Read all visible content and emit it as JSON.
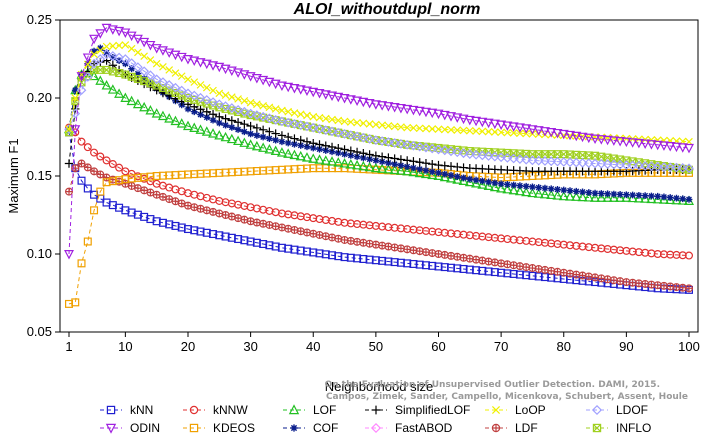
{
  "chart_data": {
    "type": "line",
    "title": "ALOI_withoutdupl_norm",
    "xlabel": "Neighborhood size",
    "ylabel": "Maximum F1",
    "xlim": [
      1,
      100
    ],
    "ylim": [
      0.05,
      0.25
    ],
    "xticks": [
      1,
      10,
      20,
      30,
      40,
      50,
      60,
      70,
      80,
      90,
      100
    ],
    "yticks": [
      0.05,
      0.1,
      0.15,
      0.2,
      0.25
    ],
    "ytick_labels": [
      "0.05",
      "0.10",
      "0.15",
      "0.20",
      "0.25"
    ],
    "legend_position": "bottom",
    "watermark_lines": [
      "Campos, Zimek, Sander, Campello, Micenkova, Schubert, Assent, Houle",
      "On the Evaluation of Unsupervised Outlier Detection. DAMI, 2015."
    ],
    "series": [
      {
        "name": "kNN",
        "color": "#1f1fd0",
        "marker": "square",
        "points": [
          [
            1,
            0.178
          ],
          [
            2,
            0.155
          ],
          [
            3,
            0.147
          ],
          [
            4,
            0.142
          ],
          [
            5,
            0.138
          ],
          [
            7,
            0.133
          ],
          [
            10,
            0.128
          ],
          [
            15,
            0.121
          ],
          [
            20,
            0.116
          ],
          [
            25,
            0.112
          ],
          [
            30,
            0.108
          ],
          [
            35,
            0.104
          ],
          [
            40,
            0.101
          ],
          [
            45,
            0.098
          ],
          [
            50,
            0.096
          ],
          [
            55,
            0.094
          ],
          [
            60,
            0.092
          ],
          [
            65,
            0.09
          ],
          [
            70,
            0.088
          ],
          [
            75,
            0.086
          ],
          [
            80,
            0.084
          ],
          [
            85,
            0.082
          ],
          [
            90,
            0.08
          ],
          [
            95,
            0.078
          ],
          [
            100,
            0.077
          ]
        ]
      },
      {
        "name": "kNNW",
        "color": "#e03030",
        "marker": "circle",
        "points": [
          [
            1,
            0.181
          ],
          [
            2,
            0.178
          ],
          [
            3,
            0.172
          ],
          [
            5,
            0.165
          ],
          [
            7,
            0.16
          ],
          [
            10,
            0.153
          ],
          [
            15,
            0.145
          ],
          [
            20,
            0.139
          ],
          [
            25,
            0.134
          ],
          [
            30,
            0.13
          ],
          [
            35,
            0.126
          ],
          [
            40,
            0.123
          ],
          [
            45,
            0.12
          ],
          [
            50,
            0.118
          ],
          [
            55,
            0.116
          ],
          [
            60,
            0.114
          ],
          [
            65,
            0.112
          ],
          [
            70,
            0.11
          ],
          [
            75,
            0.108
          ],
          [
            80,
            0.106
          ],
          [
            85,
            0.104
          ],
          [
            90,
            0.102
          ],
          [
            95,
            0.1
          ],
          [
            100,
            0.099
          ]
        ]
      },
      {
        "name": "LOF",
        "color": "#22c022",
        "marker": "triangle",
        "points": [
          [
            1,
            0.18
          ],
          [
            2,
            0.205
          ],
          [
            3,
            0.215
          ],
          [
            4,
            0.216
          ],
          [
            5,
            0.214
          ],
          [
            7,
            0.208
          ],
          [
            10,
            0.2
          ],
          [
            15,
            0.19
          ],
          [
            20,
            0.182
          ],
          [
            25,
            0.176
          ],
          [
            30,
            0.17
          ],
          [
            35,
            0.165
          ],
          [
            40,
            0.161
          ],
          [
            45,
            0.158
          ],
          [
            50,
            0.155
          ],
          [
            55,
            0.153
          ],
          [
            60,
            0.15
          ],
          [
            65,
            0.146
          ],
          [
            70,
            0.142
          ],
          [
            75,
            0.139
          ],
          [
            80,
            0.137
          ],
          [
            85,
            0.136
          ],
          [
            90,
            0.136
          ],
          [
            95,
            0.135
          ],
          [
            100,
            0.134
          ]
        ]
      },
      {
        "name": "SimplifiedLOF",
        "color": "#000000",
        "marker": "plus",
        "points": [
          [
            1,
            0.158
          ],
          [
            2,
            0.193
          ],
          [
            3,
            0.212
          ],
          [
            5,
            0.222
          ],
          [
            7,
            0.224
          ],
          [
            10,
            0.215
          ],
          [
            15,
            0.205
          ],
          [
            20,
            0.196
          ],
          [
            25,
            0.188
          ],
          [
            30,
            0.182
          ],
          [
            35,
            0.176
          ],
          [
            40,
            0.171
          ],
          [
            45,
            0.167
          ],
          [
            50,
            0.163
          ],
          [
            55,
            0.16
          ],
          [
            60,
            0.157
          ],
          [
            65,
            0.155
          ],
          [
            70,
            0.154
          ],
          [
            75,
            0.153
          ],
          [
            80,
            0.153
          ],
          [
            85,
            0.153
          ],
          [
            90,
            0.153
          ],
          [
            95,
            0.154
          ],
          [
            100,
            0.154
          ]
        ]
      },
      {
        "name": "LoOP",
        "color": "#f0f000",
        "marker": "x",
        "points": [
          [
            1,
            0.18
          ],
          [
            2,
            0.2
          ],
          [
            3,
            0.215
          ],
          [
            5,
            0.228
          ],
          [
            7,
            0.233
          ],
          [
            10,
            0.234
          ],
          [
            15,
            0.222
          ],
          [
            20,
            0.212
          ],
          [
            25,
            0.203
          ],
          [
            30,
            0.197
          ],
          [
            35,
            0.192
          ],
          [
            40,
            0.188
          ],
          [
            45,
            0.185
          ],
          [
            50,
            0.183
          ],
          [
            55,
            0.181
          ],
          [
            60,
            0.18
          ],
          [
            65,
            0.179
          ],
          [
            70,
            0.178
          ],
          [
            75,
            0.177
          ],
          [
            80,
            0.176
          ],
          [
            85,
            0.175
          ],
          [
            90,
            0.174
          ],
          [
            95,
            0.173
          ],
          [
            100,
            0.172
          ]
        ]
      },
      {
        "name": "LDOF",
        "color": "#a0a0ff",
        "marker": "diamond",
        "points": [
          [
            1,
            0.18
          ],
          [
            2,
            0.19
          ],
          [
            3,
            0.205
          ],
          [
            5,
            0.222
          ],
          [
            7,
            0.228
          ],
          [
            10,
            0.225
          ],
          [
            15,
            0.212
          ],
          [
            20,
            0.203
          ],
          [
            25,
            0.196
          ],
          [
            30,
            0.19
          ],
          [
            35,
            0.185
          ],
          [
            40,
            0.181
          ],
          [
            45,
            0.177
          ],
          [
            50,
            0.173
          ],
          [
            55,
            0.17
          ],
          [
            60,
            0.167
          ],
          [
            65,
            0.164
          ],
          [
            70,
            0.162
          ],
          [
            75,
            0.16
          ],
          [
            80,
            0.159
          ],
          [
            85,
            0.158
          ],
          [
            90,
            0.157
          ],
          [
            95,
            0.156
          ],
          [
            100,
            0.155
          ]
        ]
      },
      {
        "name": "ODIN",
        "color": "#a020e0",
        "marker": "invtriangle",
        "points": [
          [
            1,
            0.1
          ],
          [
            2,
            0.18
          ],
          [
            3,
            0.214
          ],
          [
            5,
            0.238
          ],
          [
            7,
            0.245
          ],
          [
            10,
            0.242
          ],
          [
            15,
            0.232
          ],
          [
            20,
            0.225
          ],
          [
            25,
            0.22
          ],
          [
            30,
            0.214
          ],
          [
            35,
            0.208
          ],
          [
            40,
            0.204
          ],
          [
            45,
            0.2
          ],
          [
            50,
            0.196
          ],
          [
            55,
            0.193
          ],
          [
            60,
            0.19
          ],
          [
            65,
            0.186
          ],
          [
            70,
            0.183
          ],
          [
            75,
            0.18
          ],
          [
            80,
            0.177
          ],
          [
            85,
            0.174
          ],
          [
            90,
            0.172
          ],
          [
            95,
            0.17
          ],
          [
            100,
            0.168
          ]
        ]
      },
      {
        "name": "KDEOS",
        "color": "#f0a000",
        "marker": "square",
        "points": [
          [
            1,
            0.068
          ],
          [
            2,
            0.069
          ],
          [
            3,
            0.094
          ],
          [
            4,
            0.108
          ],
          [
            5,
            0.128
          ],
          [
            6,
            0.14
          ],
          [
            7,
            0.146
          ],
          [
            10,
            0.148
          ],
          [
            15,
            0.15
          ],
          [
            20,
            0.151
          ],
          [
            25,
            0.152
          ],
          [
            30,
            0.153
          ],
          [
            35,
            0.154
          ],
          [
            40,
            0.155
          ],
          [
            45,
            0.155
          ],
          [
            50,
            0.154
          ],
          [
            55,
            0.153
          ],
          [
            60,
            0.152
          ],
          [
            65,
            0.15
          ],
          [
            70,
            0.149
          ],
          [
            75,
            0.15
          ],
          [
            80,
            0.151
          ],
          [
            85,
            0.151
          ],
          [
            90,
            0.152
          ],
          [
            95,
            0.152
          ],
          [
            100,
            0.152
          ]
        ]
      },
      {
        "name": "COF",
        "color": "#0a1e8c",
        "marker": "star",
        "points": [
          [
            1,
            0.18
          ],
          [
            2,
            0.205
          ],
          [
            3,
            0.215
          ],
          [
            4,
            0.222
          ],
          [
            5,
            0.23
          ],
          [
            6,
            0.232
          ],
          [
            7,
            0.229
          ],
          [
            8,
            0.226
          ],
          [
            10,
            0.222
          ],
          [
            15,
            0.206
          ],
          [
            20,
            0.193
          ],
          [
            25,
            0.184
          ],
          [
            30,
            0.177
          ],
          [
            35,
            0.172
          ],
          [
            40,
            0.168
          ],
          [
            45,
            0.164
          ],
          [
            50,
            0.16
          ],
          [
            55,
            0.156
          ],
          [
            60,
            0.152
          ],
          [
            65,
            0.148
          ],
          [
            70,
            0.145
          ],
          [
            75,
            0.143
          ],
          [
            80,
            0.141
          ],
          [
            85,
            0.139
          ],
          [
            90,
            0.138
          ],
          [
            95,
            0.137
          ],
          [
            100,
            0.135
          ]
        ]
      },
      {
        "name": "FastABOD",
        "color": "#ff88ff",
        "marker": "diamond",
        "points": []
      },
      {
        "name": "LDF",
        "color": "#c04040",
        "marker": "circleplus",
        "points": [
          [
            1,
            0.14
          ],
          [
            2,
            0.155
          ],
          [
            3,
            0.158
          ],
          [
            5,
            0.153
          ],
          [
            7,
            0.149
          ],
          [
            10,
            0.145
          ],
          [
            15,
            0.138
          ],
          [
            20,
            0.131
          ],
          [
            25,
            0.126
          ],
          [
            30,
            0.121
          ],
          [
            35,
            0.117
          ],
          [
            40,
            0.113
          ],
          [
            45,
            0.109
          ],
          [
            50,
            0.106
          ],
          [
            55,
            0.103
          ],
          [
            60,
            0.1
          ],
          [
            65,
            0.097
          ],
          [
            70,
            0.094
          ],
          [
            75,
            0.091
          ],
          [
            80,
            0.088
          ],
          [
            85,
            0.085
          ],
          [
            90,
            0.082
          ],
          [
            95,
            0.08
          ],
          [
            100,
            0.078
          ]
        ]
      },
      {
        "name": "INFLO",
        "color": "#a0d020",
        "marker": "boxx",
        "points": [
          [
            1,
            0.178
          ],
          [
            2,
            0.198
          ],
          [
            3,
            0.21
          ],
          [
            5,
            0.218
          ],
          [
            7,
            0.218
          ],
          [
            10,
            0.215
          ],
          [
            15,
            0.208
          ],
          [
            20,
            0.2
          ],
          [
            25,
            0.194
          ],
          [
            30,
            0.189
          ],
          [
            35,
            0.185
          ],
          [
            40,
            0.181
          ],
          [
            45,
            0.177
          ],
          [
            50,
            0.173
          ],
          [
            55,
            0.17
          ],
          [
            60,
            0.168
          ],
          [
            65,
            0.166
          ],
          [
            70,
            0.165
          ],
          [
            75,
            0.164
          ],
          [
            80,
            0.164
          ],
          [
            85,
            0.163
          ],
          [
            90,
            0.16
          ],
          [
            95,
            0.157
          ],
          [
            100,
            0.154
          ]
        ]
      }
    ],
    "legend_order": [
      [
        "kNN",
        "kNNW",
        "LOF",
        "SimplifiedLOF",
        "LoOP",
        "LDOF"
      ],
      [
        "ODIN",
        "KDEOS",
        "COF",
        "FastABOD",
        "LDF",
        "INFLO"
      ]
    ]
  }
}
